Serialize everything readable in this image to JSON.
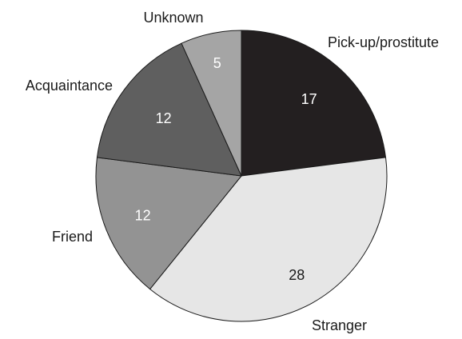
{
  "chart_data": {
    "type": "pie",
    "title": "",
    "slices": [
      {
        "label": "Pick-up/prostitute",
        "value": 17,
        "color": "#231f20",
        "value_color": "#ffffff"
      },
      {
        "label": "Stranger",
        "value": 28,
        "color": "#e6e6e6",
        "value_color": "#1a1a1a"
      },
      {
        "label": "Friend",
        "value": 12,
        "color": "#939393",
        "value_color": "#ffffff"
      },
      {
        "label": "Acquaintance",
        "value": 12,
        "color": "#5f5f5f",
        "value_color": "#ffffff"
      },
      {
        "label": "Unknown",
        "value": 5,
        "color": "#a5a5a5",
        "value_color": "#ffffff"
      }
    ],
    "start_angle_deg": 0,
    "direction": "clockwise",
    "stroke_color": "#1a1a1a"
  }
}
